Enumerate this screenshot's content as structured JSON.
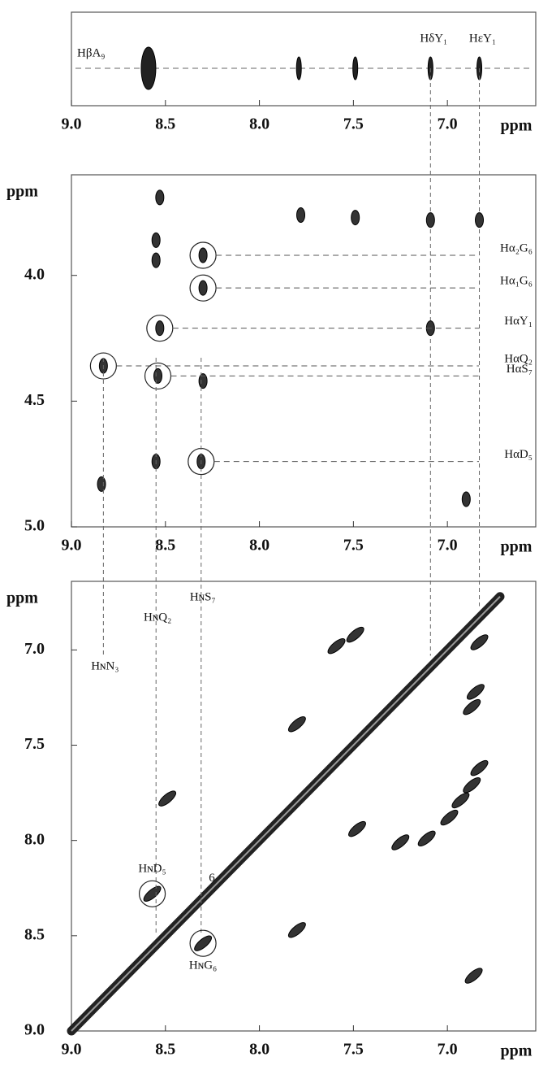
{
  "chart_data": [
    {
      "type": "spectrum-1d",
      "reference_label": "HβA₉",
      "x": [
        8.59,
        7.79,
        7.49,
        7.09,
        6.83
      ],
      "xlim": [
        9.0,
        6.53
      ],
      "xticks": [
        {
          "value": 9,
          "label": "9.0"
        },
        {
          "value": 8.5,
          "label": "8.5"
        },
        {
          "value": 8,
          "label": "8.0"
        },
        {
          "value": 7.5,
          "label": "7.5"
        },
        {
          "value": 7,
          "label": "7.0"
        }
      ],
      "x_label": "ppm",
      "annotations": [
        {
          "text": "HδY₁",
          "x": 7.09
        },
        {
          "text": "HεY₁",
          "x": 6.83
        }
      ]
    },
    {
      "type": "scatter",
      "x": [
        8.53,
        8.55,
        8.55,
        8.3,
        8.3,
        8.53,
        8.83,
        8.54,
        8.3,
        8.55,
        8.31,
        8.84,
        7.78,
        7.49,
        7.09,
        6.83,
        7.09,
        6.9
      ],
      "values": [
        3.69,
        3.86,
        3.94,
        3.92,
        4.05,
        4.21,
        4.36,
        4.4,
        4.42,
        4.74,
        4.74,
        4.83,
        3.76,
        3.77,
        3.78,
        3.78,
        4.21,
        4.89
      ],
      "xlim": [
        9.0,
        6.53
      ],
      "xticks": [
        {
          "value": 9,
          "label": "9.0"
        },
        {
          "value": 8.5,
          "label": "8.5"
        },
        {
          "value": 8,
          "label": "8.0"
        },
        {
          "value": 7.5,
          "label": "7.5"
        },
        {
          "value": 7,
          "label": "7.0"
        }
      ],
      "x_label": "ppm",
      "ylim": [
        5.0,
        3.6
      ],
      "yticks": [
        {
          "value": 4,
          "label": "4.0"
        },
        {
          "value": 4.5,
          "label": "4.5"
        },
        {
          "value": 5,
          "label": "5.0"
        }
      ],
      "y_label": "ppm",
      "annotations": [
        {
          "text": "Hα₂G₆",
          "x": 8.3,
          "y": 3.92,
          "circled": true
        },
        {
          "text": "Hα₁G₆",
          "x": 8.3,
          "y": 4.05,
          "circled": true
        },
        {
          "text": "HαY₁",
          "x": 8.53,
          "y": 4.21,
          "circled": true
        },
        {
          "text": "HαQ₂",
          "x": 8.83,
          "y": 4.36,
          "circled": true
        },
        {
          "text": "HαS₇",
          "x": 8.54,
          "y": 4.4,
          "circled": true
        },
        {
          "text": "HαD₅",
          "x": 8.31,
          "y": 4.74,
          "circled": true
        }
      ]
    },
    {
      "type": "scatter",
      "x": [
        8.57,
        8.3,
        7.8,
        8.49,
        7.25,
        7.8,
        7.48,
        7.11,
        6.99,
        6.93,
        6.87,
        6.83,
        6.85,
        6.87,
        6.83,
        7.59,
        7.49,
        6.86
      ],
      "values": [
        8.28,
        8.54,
        8.47,
        7.78,
        8.01,
        7.39,
        7.94,
        7.99,
        7.88,
        7.79,
        7.71,
        7.62,
        7.22,
        7.3,
        6.96,
        6.98,
        6.92,
        8.71
      ],
      "diagonal": [
        9.0,
        6.72
      ],
      "xlim": [
        9.0,
        6.53
      ],
      "xticks": [
        {
          "value": 9,
          "label": "9.0"
        },
        {
          "value": 8.5,
          "label": "8.5"
        },
        {
          "value": 8,
          "label": "8.0"
        },
        {
          "value": 7.5,
          "label": "7.5"
        },
        {
          "value": 7,
          "label": "7.0"
        }
      ],
      "x_label": "ppm",
      "ylim": [
        9.0,
        6.64
      ],
      "yticks": [
        {
          "value": 7,
          "label": "7.0"
        },
        {
          "value": 7.5,
          "label": "7.5"
        },
        {
          "value": 8,
          "label": "8.0"
        },
        {
          "value": 8.5,
          "label": "8.5"
        },
        {
          "value": 9,
          "label": "9.0"
        }
      ],
      "y_label": "ppm",
      "annotations": [
        {
          "text": "HɴN₃",
          "x": 8.83
        },
        {
          "text": "HɴQ₂",
          "x": 8.55
        },
        {
          "text": "HɴS₇",
          "x": 8.31
        },
        {
          "text": "HɴD₅",
          "x": 8.57,
          "y": 8.28,
          "circled": true
        },
        {
          "text": "HɴG₆",
          "x": 8.3,
          "y": 8.54,
          "circled": true
        },
        {
          "text": "6",
          "x": 8.27,
          "y": 8.2
        }
      ]
    }
  ]
}
